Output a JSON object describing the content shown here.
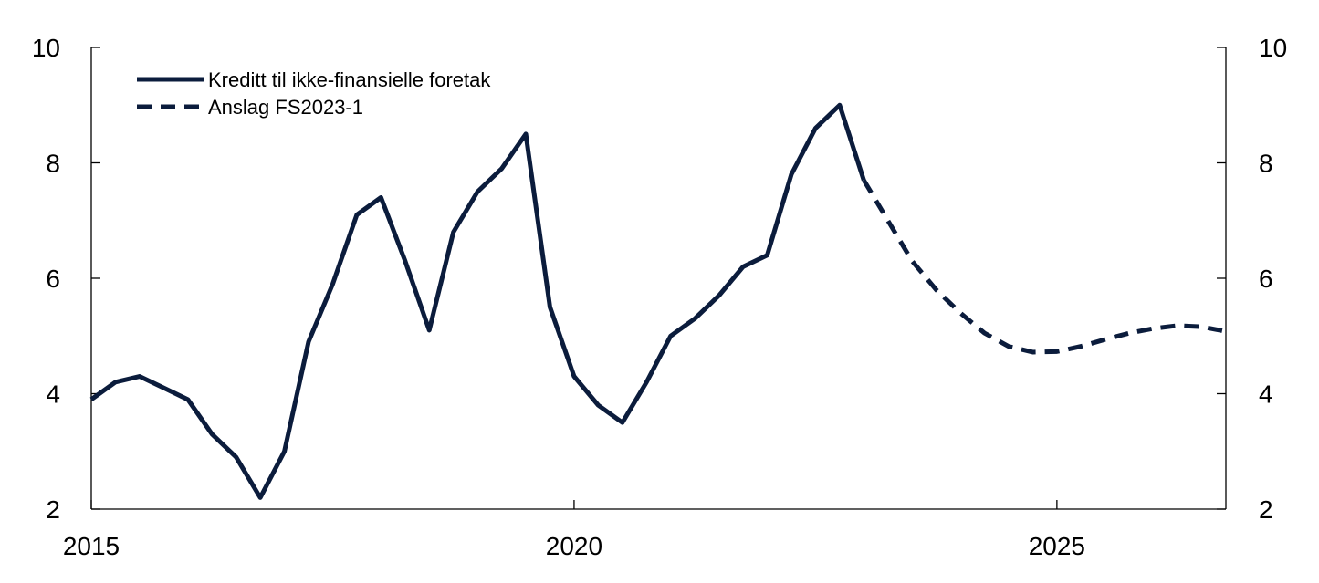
{
  "chart_data": {
    "type": "line",
    "title": "",
    "xlabel": "",
    "ylabel": "",
    "xlim": [
      2015,
      2026.75
    ],
    "ylim": [
      2,
      10
    ],
    "y_ticks": [
      2,
      4,
      6,
      8,
      10
    ],
    "y_tick_labels": [
      "2",
      "4",
      "6",
      "8",
      "10"
    ],
    "x_ticks": [
      2015,
      2020,
      2025
    ],
    "x_tick_labels": [
      "2015",
      "2020",
      "2025"
    ],
    "secondary_y_axis": true,
    "grid": false,
    "legend_position": "top-left",
    "series": [
      {
        "name": "Kreditt til ikke-finansielle foretak",
        "style": "solid",
        "color": "#0b1c3c",
        "points": [
          [
            2015.0,
            3.9
          ],
          [
            2015.25,
            4.2
          ],
          [
            2015.5,
            4.3
          ],
          [
            2015.75,
            4.1
          ],
          [
            2016.0,
            3.9
          ],
          [
            2016.25,
            3.3
          ],
          [
            2016.5,
            2.9
          ],
          [
            2016.75,
            2.2
          ],
          [
            2017.0,
            3.0
          ],
          [
            2017.25,
            4.9
          ],
          [
            2017.5,
            5.9
          ],
          [
            2017.75,
            7.1
          ],
          [
            2018.0,
            7.4
          ],
          [
            2018.25,
            6.3
          ],
          [
            2018.5,
            5.1
          ],
          [
            2018.75,
            6.8
          ],
          [
            2019.0,
            7.5
          ],
          [
            2019.25,
            7.9
          ],
          [
            2019.5,
            8.5
          ],
          [
            2019.75,
            5.5
          ],
          [
            2020.0,
            4.3
          ],
          [
            2020.25,
            3.8
          ],
          [
            2020.5,
            3.5
          ],
          [
            2020.75,
            4.2
          ],
          [
            2021.0,
            5.0
          ],
          [
            2021.25,
            5.3
          ],
          [
            2021.5,
            5.7
          ],
          [
            2021.75,
            6.2
          ],
          [
            2022.0,
            6.4
          ],
          [
            2022.25,
            7.8
          ],
          [
            2022.5,
            8.6
          ],
          [
            2022.75,
            9.0
          ],
          [
            2023.0,
            7.7
          ]
        ]
      },
      {
        "name": "Anslag FS2023-1",
        "style": "dashed",
        "color": "#0b1c3c",
        "points": [
          [
            2023.0,
            7.7
          ],
          [
            2023.25,
            7.0
          ],
          [
            2023.5,
            6.3
          ],
          [
            2023.75,
            5.8
          ],
          [
            2024.0,
            5.4
          ],
          [
            2024.25,
            5.05
          ],
          [
            2024.5,
            4.82
          ],
          [
            2024.75,
            4.72
          ],
          [
            2025.0,
            4.73
          ],
          [
            2025.25,
            4.82
          ],
          [
            2025.5,
            4.94
          ],
          [
            2025.75,
            5.05
          ],
          [
            2026.0,
            5.13
          ],
          [
            2026.25,
            5.18
          ],
          [
            2026.5,
            5.16
          ],
          [
            2026.75,
            5.08
          ]
        ]
      }
    ]
  }
}
